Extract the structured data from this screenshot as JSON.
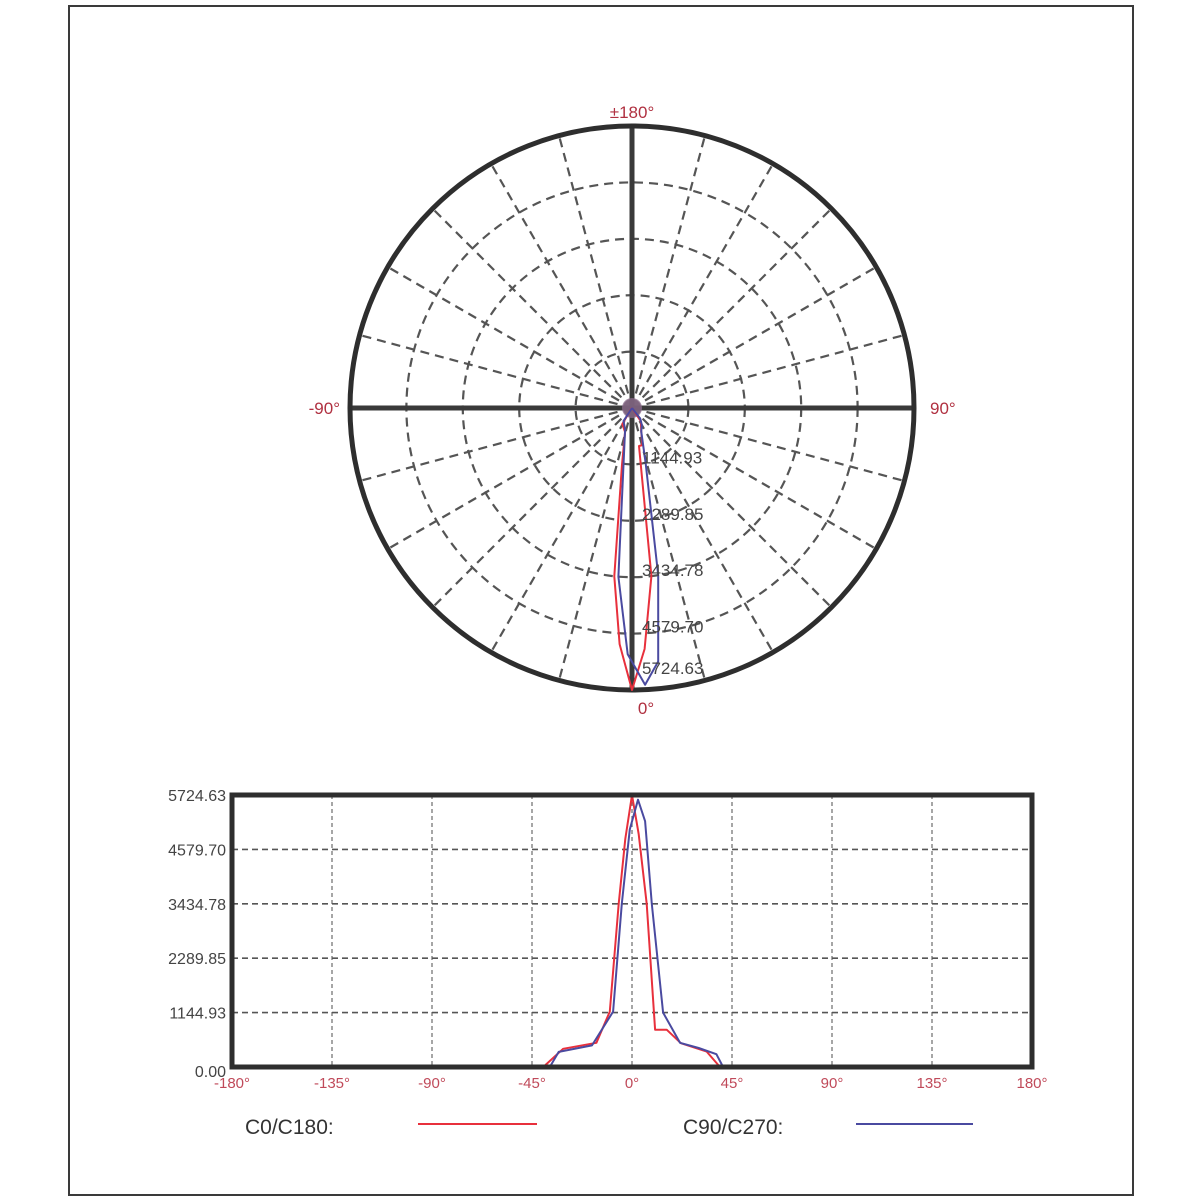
{
  "chart_data": [
    {
      "type": "polar",
      "angle_labels": {
        "top": "±180°",
        "left": "-90°",
        "right": "90°",
        "bottom": "0°"
      },
      "ring_values": [
        1144.93,
        2289.85,
        3434.78,
        4579.7,
        5724.63
      ],
      "ring_labels": [
        "1144.93",
        "2289.85",
        "3434.78",
        "4579.70",
        "5724.63"
      ],
      "rmax": 5724.63,
      "spoke_step_deg": 15,
      "grid": true
    },
    {
      "type": "line",
      "xlim": [
        -180,
        180
      ],
      "ylim": [
        0,
        5724.63
      ],
      "x_ticks": [
        -180,
        -135,
        -90,
        -45,
        0,
        45,
        90,
        135,
        180
      ],
      "x_tick_labels": [
        "-180°",
        "-135°",
        "-90°",
        "-45°",
        "0°",
        "45°",
        "90°",
        "135°",
        "180°"
      ],
      "y_ticks": [
        0,
        1144.93,
        2289.85,
        3434.78,
        4579.7,
        5724.63
      ],
      "y_tick_labels": [
        "0.00",
        "1144.93",
        "2289.85",
        "3434.78",
        "4579.70",
        "5724.63"
      ],
      "grid": true,
      "legend_placement": "bottom",
      "series": [
        {
          "name": "C0/C180:",
          "color": "#e8303c",
          "x": [
            -180,
            -40,
            -39,
            -31,
            -16,
            -10,
            -6,
            -3,
            0,
            3,
            6.6,
            10.4,
            15.6,
            22,
            33.6,
            39.6,
            40,
            180
          ],
          "y": [
            0,
            0,
            40,
            382,
            509,
            1166,
            3435,
            4800,
            5724.63,
            4900,
            3435,
            785,
            785,
            500,
            325,
            0,
            0,
            0
          ]
        },
        {
          "name": "C90/C270:",
          "color": "#4a4aa0",
          "x": [
            -180,
            -38,
            -37,
            -33,
            -18,
            -8.5,
            -4.6,
            -1,
            2.7,
            5.9,
            8.9,
            14,
            21.6,
            30,
            38,
            41,
            42,
            180
          ],
          "y": [
            0,
            0,
            0,
            318,
            455,
            1166,
            3435,
            5000,
            5625,
            5173,
            3435,
            1145,
            509,
            400,
            270,
            0,
            0,
            0
          ]
        }
      ]
    }
  ]
}
